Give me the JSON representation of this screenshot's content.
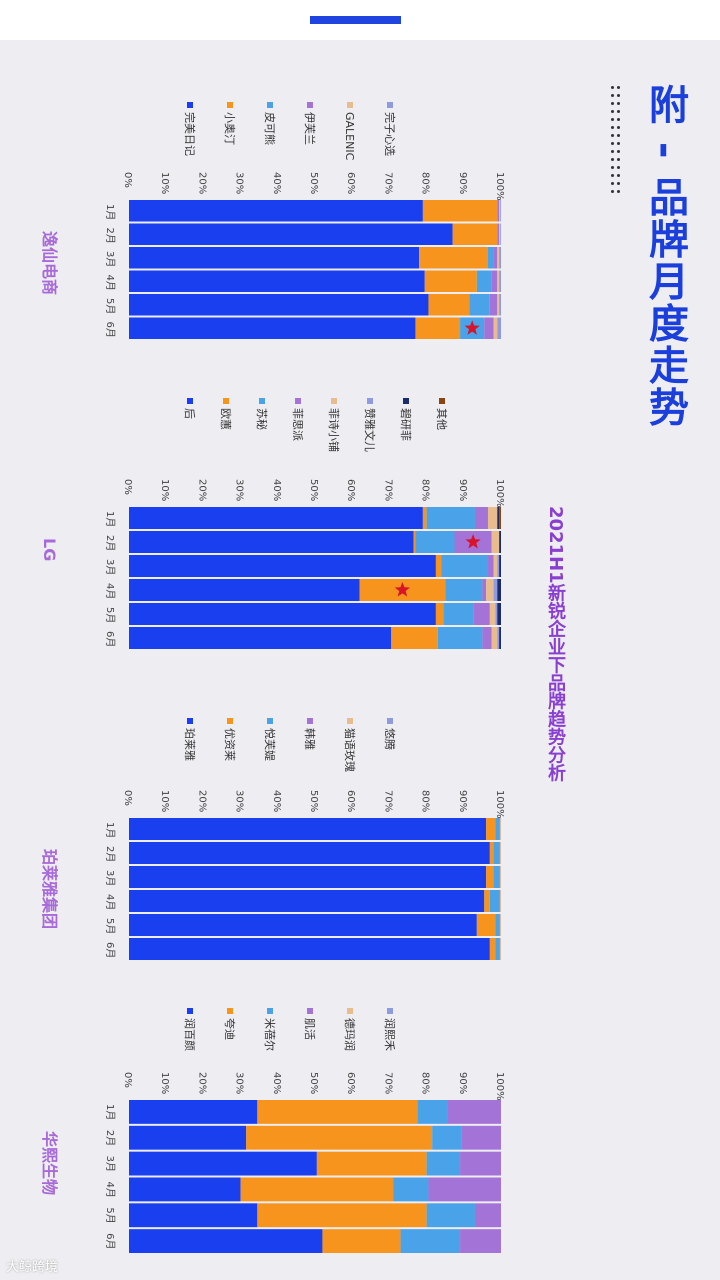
{
  "page": {
    "main_title": "附 - 品牌月度走势",
    "subtitle": "2021H1新锐企业下品牌趋势分析",
    "watermark": "大鲸跨境"
  },
  "chart_data": [
    {
      "type": "bar",
      "stacked": true,
      "title": "逸仙电商",
      "categories": [
        "1月",
        "2月",
        "3月",
        "4月",
        "5月",
        "6月"
      ],
      "ylim": [
        0,
        100
      ],
      "ticks": [
        "0%",
        "10%",
        "20%",
        "30%",
        "40%",
        "50%",
        "60%",
        "70%",
        "80%",
        "90%",
        "100%"
      ],
      "series": [
        {
          "name": "完美日记",
          "color": "#1a3fef",
          "values": [
            79,
            87,
            78,
            79.5,
            80.5,
            77
          ]
        },
        {
          "name": "小奥汀",
          "color": "#f7941d",
          "values": [
            20,
            12,
            18.5,
            14,
            11,
            12
          ]
        },
        {
          "name": "皮可熊",
          "color": "#4aa3e8",
          "values": [
            0,
            0,
            1.5,
            4,
            5.5,
            6.5
          ]
        },
        {
          "name": "伊芙兰",
          "color": "#a373d8",
          "values": [
            0.5,
            0.5,
            1,
            1.5,
            2,
            2.5
          ]
        },
        {
          "name": "GALENIC",
          "color": "#e8bc8c",
          "values": [
            0.3,
            0.3,
            0.5,
            0.5,
            0.5,
            1
          ]
        },
        {
          "name": "完子心选",
          "color": "#8f9be0",
          "values": [
            0.2,
            0.2,
            0.5,
            0.5,
            0.5,
            1
          ]
        }
      ],
      "markers": [
        {
          "category": "6月",
          "series": "皮可熊"
        }
      ]
    },
    {
      "type": "bar",
      "stacked": true,
      "title": "LG",
      "categories": [
        "1月",
        "2月",
        "3月",
        "4月",
        "5月",
        "6月"
      ],
      "ylim": [
        0,
        100
      ],
      "ticks": [
        "0%",
        "10%",
        "20%",
        "30%",
        "40%",
        "50%",
        "60%",
        "70%",
        "80%",
        "90%",
        "100%"
      ],
      "series": [
        {
          "name": "后",
          "color": "#1a3fef",
          "values": [
            79,
            76.5,
            82.5,
            62,
            82.5,
            70.5
          ]
        },
        {
          "name": "欧蕙",
          "color": "#f7941d",
          "values": [
            1,
            0.5,
            1.5,
            23,
            2,
            12.5
          ]
        },
        {
          "name": "苏秘",
          "color": "#4aa3e8",
          "values": [
            13,
            10.5,
            12.5,
            10,
            8,
            12
          ]
        },
        {
          "name": "菲思派",
          "color": "#a373d8",
          "values": [
            3.5,
            10,
            1.5,
            1,
            4.5,
            2.5
          ]
        },
        {
          "name": "菲诗小铺",
          "color": "#e8bc8c",
          "values": [
            2.5,
            2,
            1,
            2,
            1.5,
            1.5
          ]
        },
        {
          "name": "赞雅文儿",
          "color": "#8f9be0",
          "values": [
            0,
            0,
            0.5,
            1,
            0.5,
            0.5
          ]
        },
        {
          "name": "碧研菲",
          "color": "#1c2a6e",
          "values": [
            0.5,
            0.5,
            0.5,
            1,
            1,
            0.5
          ]
        },
        {
          "name": "其他",
          "color": "#8b4513",
          "values": [
            0.5,
            0,
            0,
            0,
            0,
            0
          ]
        }
      ],
      "markers": [
        {
          "category": "2月",
          "series": "菲思派"
        },
        {
          "category": "4月",
          "series": "欧蕙"
        }
      ]
    },
    {
      "type": "bar",
      "stacked": true,
      "title": "珀莱雅集团",
      "categories": [
        "1月",
        "2月",
        "3月",
        "4月",
        "5月",
        "6月"
      ],
      "ylim": [
        0,
        100
      ],
      "ticks": [
        "0%",
        "10%",
        "20%",
        "30%",
        "40%",
        "50%",
        "60%",
        "70%",
        "80%",
        "90%",
        "100%"
      ],
      "series": [
        {
          "name": "珀莱雅",
          "color": "#1a3fef",
          "values": [
            96,
            97,
            96,
            95.5,
            93.5,
            97
          ]
        },
        {
          "name": "优资莱",
          "color": "#f7941d",
          "values": [
            2.5,
            1,
            2,
            1.5,
            5,
            1.5
          ]
        },
        {
          "name": "悦芙媞",
          "color": "#4aa3e8",
          "values": [
            1,
            1.5,
            1.5,
            2.5,
            1,
            1
          ]
        },
        {
          "name": "韩雅",
          "color": "#a373d8",
          "values": [
            0.3,
            0.3,
            0.3,
            0.3,
            0.3,
            0.3
          ]
        },
        {
          "name": "猫语玫瑰",
          "color": "#e8bc8c",
          "values": [
            0.2,
            0.2,
            0.2,
            0.2,
            0.2,
            0.2
          ]
        },
        {
          "name": "悠腾",
          "color": "#8f9be0",
          "values": [
            0,
            0,
            0,
            0,
            0,
            0
          ]
        }
      ]
    },
    {
      "type": "bar",
      "stacked": true,
      "title": "华熙生物",
      "categories": [
        "1月",
        "2月",
        "3月",
        "4月",
        "5月",
        "6月"
      ],
      "ylim": [
        0,
        100
      ],
      "ticks": [
        "0%",
        "10%",
        "20%",
        "30%",
        "40%",
        "50%",
        "60%",
        "70%",
        "80%",
        "90%",
        "100%"
      ],
      "series": [
        {
          "name": "润百颜",
          "color": "#1a3fef",
          "values": [
            34.5,
            31.5,
            50.5,
            30,
            34.5,
            52
          ]
        },
        {
          "name": "夸迪",
          "color": "#f7941d",
          "values": [
            43,
            50,
            29.5,
            41,
            45.5,
            21
          ]
        },
        {
          "name": "米蓓尔",
          "color": "#4aa3e8",
          "values": [
            8,
            8,
            9,
            9.5,
            13,
            16
          ]
        },
        {
          "name": "肌活",
          "color": "#a373d8",
          "values": [
            14.5,
            10.5,
            11,
            19.5,
            7,
            11
          ]
        },
        {
          "name": "德玛润",
          "color": "#e8bc8c",
          "values": [
            0,
            0,
            0,
            0,
            0,
            0
          ]
        },
        {
          "name": "润熙禾",
          "color": "#8f9be0",
          "values": [
            0,
            0,
            0,
            0,
            0,
            0
          ]
        }
      ]
    }
  ]
}
